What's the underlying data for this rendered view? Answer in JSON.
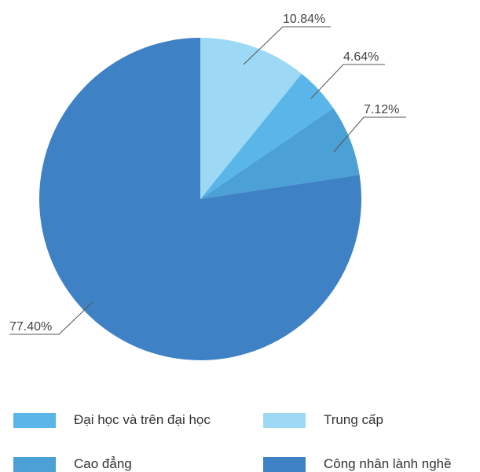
{
  "chart_data": {
    "type": "pie",
    "categories": [
      "Trung cấp",
      "Đại học và trên đại học",
      "Cao đẳng",
      "Công nhân lành nghề"
    ],
    "values": [
      10.84,
      4.64,
      7.12,
      77.4
    ],
    "labels": [
      "10.84%",
      "4.64%",
      "7.12%",
      "77.40%"
    ],
    "colors": [
      "#9dd9f5",
      "#5ab6e8",
      "#4ba0d6",
      "#3e82c5"
    ],
    "legend_position": "bottom",
    "legend": [
      {
        "label": "Đại học và trên đại học",
        "color": "#5ab6e8"
      },
      {
        "label": "Trung cấp",
        "color": "#9dd9f5"
      },
      {
        "label": "Cao đẳng",
        "color": "#4ba0d6"
      },
      {
        "label": "Công nhân lành nghề",
        "color": "#3e82c5"
      }
    ]
  }
}
